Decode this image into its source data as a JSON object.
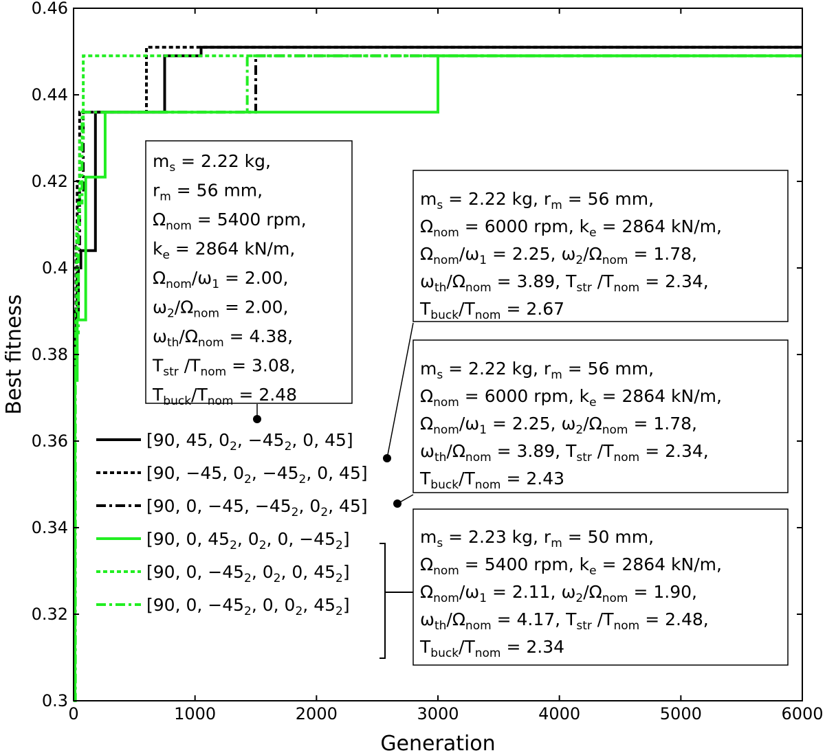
{
  "chart_data": {
    "type": "line",
    "title": "",
    "xlabel": "Generation",
    "ylabel": "Best fitness",
    "xlim": [
      0,
      6000
    ],
    "ylim": [
      0.3,
      0.46
    ],
    "xticks": [
      0,
      1000,
      2000,
      3000,
      4000,
      5000,
      6000
    ],
    "xtick_labels": [
      "0",
      "1000",
      "2000",
      "3000",
      "4000",
      "5000",
      "6000"
    ],
    "yticks": [
      0.3,
      0.32,
      0.34,
      0.36,
      0.38,
      0.4,
      0.42,
      0.44,
      0.46
    ],
    "ytick_labels": [
      "0.3",
      "0.32",
      "0.34",
      "0.36",
      "0.38",
      "0.4",
      "0.42",
      "0.44",
      "0.46"
    ],
    "grid": false,
    "legend_position": "lower-left",
    "series": [
      {
        "id": "s1",
        "color": "#000000",
        "dash": "solid",
        "legend_parts": [
          [
            "[90, 45, 0",
            ""
          ],
          [
            "2",
            "sub"
          ],
          [
            ", −45",
            ""
          ],
          [
            "2",
            "sub"
          ],
          [
            ", 0, 45]",
            ""
          ]
        ],
        "x": [
          0,
          10,
          20,
          40,
          60,
          140,
          180,
          750,
          1050,
          6000
        ],
        "y": [
          0.3,
          0.385,
          0.39,
          0.4,
          0.404,
          0.404,
          0.436,
          0.449,
          0.451,
          0.451
        ]
      },
      {
        "id": "s2",
        "color": "#000000",
        "dash": "dotted",
        "legend_parts": [
          [
            "[90, −45, 0",
            ""
          ],
          [
            "2",
            "sub"
          ],
          [
            ", −45",
            ""
          ],
          [
            "2",
            "sub"
          ],
          [
            ", 0, 45]",
            ""
          ]
        ],
        "x": [
          0,
          10,
          20,
          30,
          50,
          600,
          1050,
          6000
        ],
        "y": [
          0.3,
          0.39,
          0.405,
          0.42,
          0.436,
          0.451,
          0.451,
          0.451
        ]
      },
      {
        "id": "s3",
        "color": "#000000",
        "dash": "dashdot",
        "legend_parts": [
          [
            "[90, 0, −45, −45",
            ""
          ],
          [
            "2",
            "sub"
          ],
          [
            ", 0",
            ""
          ],
          [
            "2",
            "sub"
          ],
          [
            ", 45]",
            ""
          ]
        ],
        "x": [
          0,
          10,
          30,
          50,
          80,
          1500,
          6000
        ],
        "y": [
          0.3,
          0.39,
          0.402,
          0.418,
          0.436,
          0.449,
          0.449
        ]
      },
      {
        "id": "s4",
        "color": "#22ee22",
        "dash": "solid",
        "legend_parts": [
          [
            "[90, 0, 45",
            ""
          ],
          [
            "2",
            "sub"
          ],
          [
            ", 0",
            ""
          ],
          [
            "2",
            "sub"
          ],
          [
            ", 0, −45",
            ""
          ],
          [
            "2",
            "sub"
          ],
          [
            "]",
            ""
          ]
        ],
        "x": [
          0,
          10,
          30,
          100,
          260,
          3000,
          6000
        ],
        "y": [
          0.3,
          0.374,
          0.388,
          0.421,
          0.436,
          0.449,
          0.449
        ]
      },
      {
        "id": "s5",
        "color": "#22ee22",
        "dash": "dotted",
        "legend_parts": [
          [
            "[90, 0, −45",
            ""
          ],
          [
            "2",
            "sub"
          ],
          [
            ", 0",
            ""
          ],
          [
            "2",
            "sub"
          ],
          [
            ", 0, 45",
            ""
          ],
          [
            "2",
            "sub"
          ],
          [
            "]",
            ""
          ]
        ],
        "x": [
          0,
          10,
          25,
          50,
          80,
          6000
        ],
        "y": [
          0.3,
          0.39,
          0.41,
          0.43,
          0.449,
          0.449
        ]
      },
      {
        "id": "s6",
        "color": "#22ee22",
        "dash": "dashdot",
        "legend_parts": [
          [
            "[90, 0, −45",
            ""
          ],
          [
            "2",
            "sub"
          ],
          [
            ", 0, 0",
            ""
          ],
          [
            "2",
            "sub"
          ],
          [
            ", 45",
            ""
          ],
          [
            "2",
            "sub"
          ],
          [
            "]",
            ""
          ]
        ],
        "x": [
          0,
          15,
          40,
          70,
          1430,
          6000
        ],
        "y": [
          0.3,
          0.385,
          0.415,
          0.436,
          0.449,
          0.449
        ]
      }
    ],
    "annotations": [
      {
        "id": "box1",
        "lines": [
          [
            [
              "m",
              ""
            ],
            [
              "s",
              "sub"
            ],
            [
              " = 2.22 kg,",
              ""
            ]
          ],
          [
            [
              "r",
              ""
            ],
            [
              "m",
              "sub"
            ],
            [
              " = 56 mm,",
              ""
            ]
          ],
          [
            [
              "Ω",
              ""
            ],
            [
              "nom",
              "sub"
            ],
            [
              " = 5400 rpm,",
              ""
            ]
          ],
          [
            [
              "k",
              ""
            ],
            [
              "e",
              "sub"
            ],
            [
              " = 2864 kN/m,",
              ""
            ]
          ],
          [
            [
              "Ω",
              ""
            ],
            [
              "nom",
              "sub"
            ],
            [
              "/ω",
              ""
            ],
            [
              "1",
              "sub"
            ],
            [
              " = 2.00,",
              ""
            ]
          ],
          [
            [
              "ω",
              ""
            ],
            [
              "2",
              "sub"
            ],
            [
              "/Ω",
              ""
            ],
            [
              "nom",
              "sub"
            ],
            [
              " = 2.00,",
              ""
            ]
          ],
          [
            [
              "ω",
              ""
            ],
            [
              "th",
              "sub"
            ],
            [
              "/Ω",
              ""
            ],
            [
              "nom",
              "sub"
            ],
            [
              " = 4.38,",
              ""
            ]
          ],
          [
            [
              "T",
              ""
            ],
            [
              "str",
              "sub"
            ],
            [
              " /T",
              ""
            ],
            [
              "nom",
              "sub"
            ],
            [
              " = 3.08,",
              ""
            ]
          ],
          [
            [
              "T",
              ""
            ],
            [
              "buck",
              "sub"
            ],
            [
              "/T",
              ""
            ],
            [
              "nom",
              "sub"
            ],
            [
              " = 2.48",
              ""
            ]
          ]
        ]
      },
      {
        "id": "box2",
        "lines": [
          [
            [
              "m",
              ""
            ],
            [
              "s",
              "sub"
            ],
            [
              " = 2.22 kg,  r",
              ""
            ],
            [
              "m",
              "sub"
            ],
            [
              " = 56 mm,",
              ""
            ]
          ],
          [
            [
              "Ω",
              ""
            ],
            [
              "nom",
              "sub"
            ],
            [
              " = 6000 rpm,  k",
              ""
            ],
            [
              "e",
              "sub"
            ],
            [
              " = 2864 kN/m,",
              ""
            ]
          ],
          [
            [
              "Ω",
              ""
            ],
            [
              "nom",
              "sub"
            ],
            [
              "/ω",
              ""
            ],
            [
              "1",
              "sub"
            ],
            [
              " = 2.25,  ω",
              ""
            ],
            [
              "2",
              "sub"
            ],
            [
              "/Ω",
              ""
            ],
            [
              "nom",
              "sub"
            ],
            [
              " = 1.78,",
              ""
            ]
          ],
          [
            [
              "ω",
              ""
            ],
            [
              "th",
              "sub"
            ],
            [
              "/Ω",
              ""
            ],
            [
              "nom",
              "sub"
            ],
            [
              " = 3.89,  T",
              ""
            ],
            [
              "str",
              "sub"
            ],
            [
              " /T",
              ""
            ],
            [
              "nom",
              "sub"
            ],
            [
              " = 2.34,",
              ""
            ]
          ],
          [
            [
              "T",
              ""
            ],
            [
              "buck",
              "sub"
            ],
            [
              "/T",
              ""
            ],
            [
              "nom",
              "sub"
            ],
            [
              " = 2.67",
              ""
            ]
          ]
        ]
      },
      {
        "id": "box3",
        "lines": [
          [
            [
              "m",
              ""
            ],
            [
              "s",
              "sub"
            ],
            [
              " = 2.22 kg,  r",
              ""
            ],
            [
              "m",
              "sub"
            ],
            [
              " = 56 mm,",
              ""
            ]
          ],
          [
            [
              "Ω",
              ""
            ],
            [
              "nom",
              "sub"
            ],
            [
              " = 6000 rpm,  k",
              ""
            ],
            [
              "e",
              "sub"
            ],
            [
              " = 2864 kN/m,",
              ""
            ]
          ],
          [
            [
              "Ω",
              ""
            ],
            [
              "nom",
              "sub"
            ],
            [
              "/ω",
              ""
            ],
            [
              "1",
              "sub"
            ],
            [
              " = 2.25,  ω",
              ""
            ],
            [
              "2",
              "sub"
            ],
            [
              "/Ω",
              ""
            ],
            [
              "nom",
              "sub"
            ],
            [
              " = 1.78,",
              ""
            ]
          ],
          [
            [
              "ω",
              ""
            ],
            [
              "th",
              "sub"
            ],
            [
              "/Ω",
              ""
            ],
            [
              "nom",
              "sub"
            ],
            [
              " = 3.89,  T",
              ""
            ],
            [
              "str",
              "sub"
            ],
            [
              " /T",
              ""
            ],
            [
              "nom",
              "sub"
            ],
            [
              " = 2.34,",
              ""
            ]
          ],
          [
            [
              "T",
              ""
            ],
            [
              "buck",
              "sub"
            ],
            [
              "/T",
              ""
            ],
            [
              "nom",
              "sub"
            ],
            [
              " = 2.43",
              ""
            ]
          ]
        ]
      },
      {
        "id": "box4",
        "lines": [
          [
            [
              "m",
              ""
            ],
            [
              "s",
              "sub"
            ],
            [
              " = 2.23 kg,  r",
              ""
            ],
            [
              "m",
              "sub"
            ],
            [
              " = 50 mm,",
              ""
            ]
          ],
          [
            [
              "Ω",
              ""
            ],
            [
              "nom",
              "sub"
            ],
            [
              " = 5400 rpm,  k",
              ""
            ],
            [
              "e",
              "sub"
            ],
            [
              " = 2864 kN/m,",
              ""
            ]
          ],
          [
            [
              "Ω",
              ""
            ],
            [
              "nom",
              "sub"
            ],
            [
              "/ω",
              ""
            ],
            [
              "1",
              "sub"
            ],
            [
              " = 2.11,  ω",
              ""
            ],
            [
              "2",
              "sub"
            ],
            [
              "/Ω",
              ""
            ],
            [
              "nom",
              "sub"
            ],
            [
              " = 1.90,",
              ""
            ]
          ],
          [
            [
              "ω",
              ""
            ],
            [
              "th",
              "sub"
            ],
            [
              "/Ω",
              ""
            ],
            [
              "nom",
              "sub"
            ],
            [
              " = 4.17,  T",
              ""
            ],
            [
              "str",
              "sub"
            ],
            [
              " /T",
              ""
            ],
            [
              "nom",
              "sub"
            ],
            [
              " = 2.48,",
              ""
            ]
          ],
          [
            [
              "T",
              ""
            ],
            [
              "buck",
              "sub"
            ],
            [
              "/T",
              ""
            ],
            [
              "nom",
              "sub"
            ],
            [
              " = 2.34",
              ""
            ]
          ]
        ]
      }
    ]
  }
}
